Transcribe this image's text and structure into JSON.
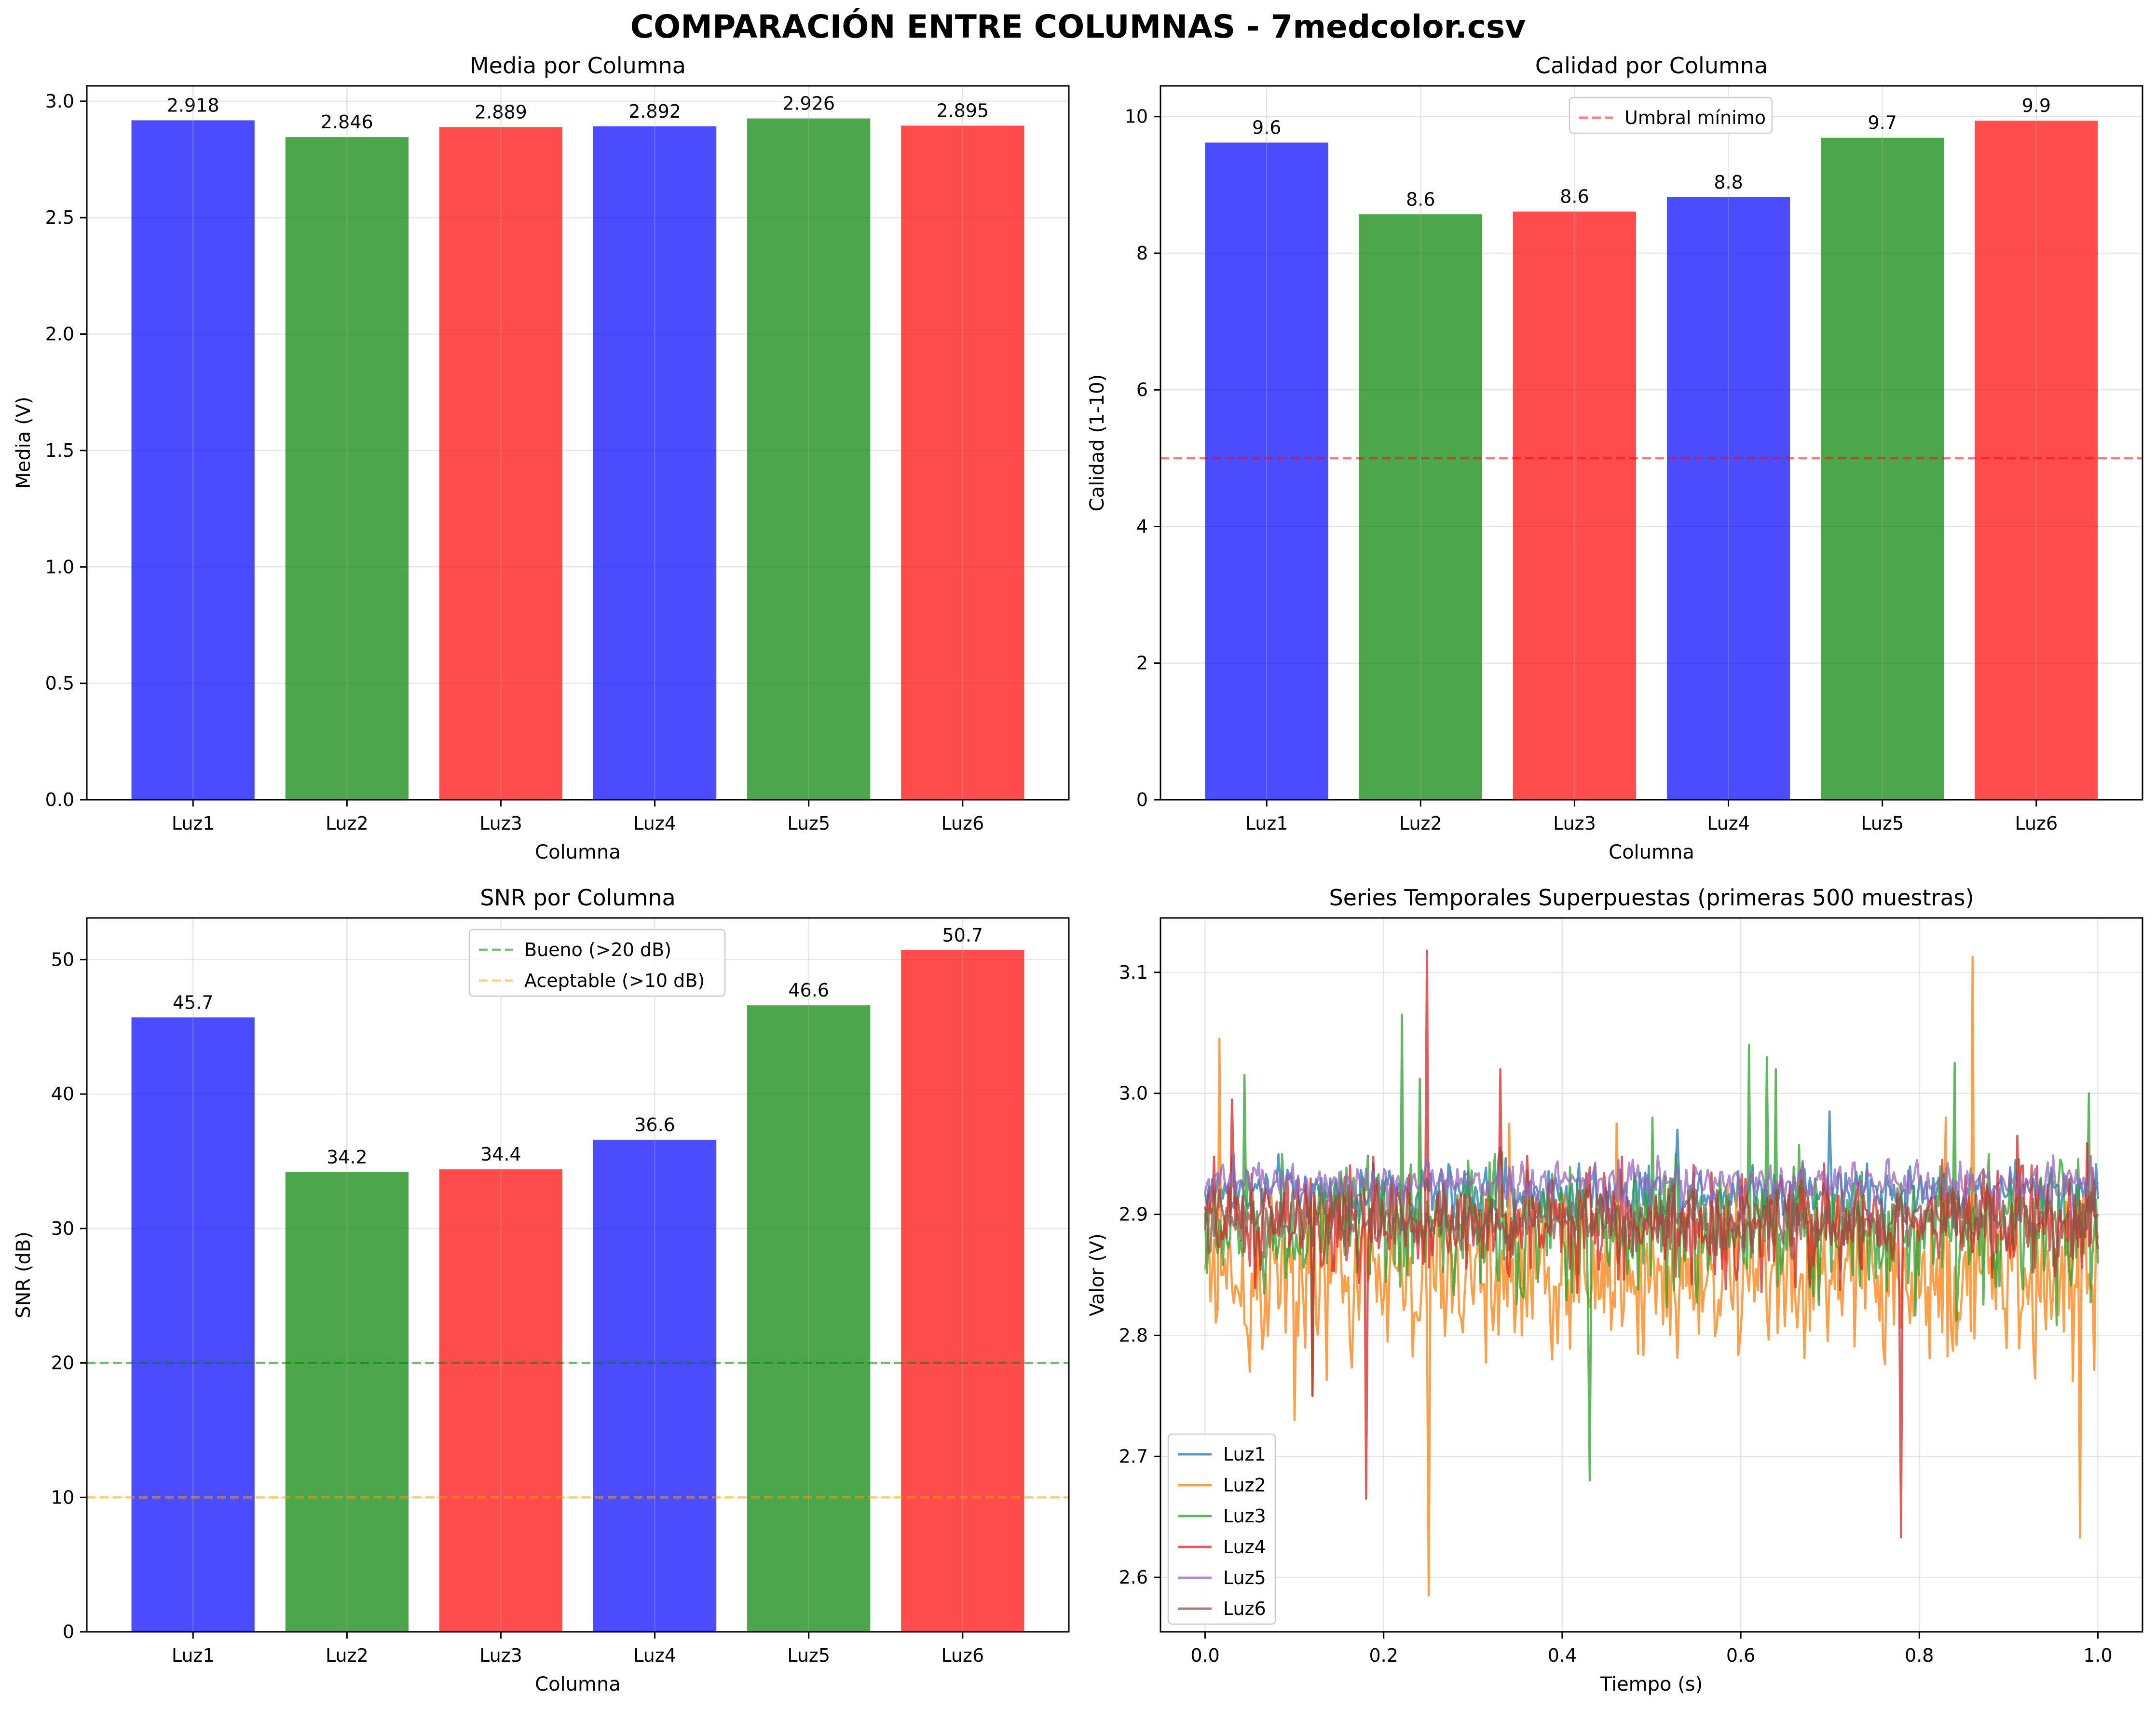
{
  "suptitle": "COMPARACIÓN ENTRE COLUMNAS - 7medcolor.csv",
  "colors": {
    "blue": "#0000ff",
    "green": "#008000",
    "red": "#ff0000",
    "line_blue": "#1f77b4",
    "line_orange": "#ff7f0e",
    "line_green": "#2ca02c",
    "line_red": "#d62728",
    "line_purple": "#9467bd",
    "line_brown": "#8c564b",
    "threshold_red": "#ff0000",
    "threshold_green": "#008000",
    "threshold_orange": "#ffa500"
  },
  "chart_data": [
    {
      "id": "media",
      "type": "bar",
      "title": "Media por Columna",
      "xlabel": "Columna",
      "ylabel": "Media (V)",
      "categories": [
        "Luz1",
        "Luz2",
        "Luz3",
        "Luz4",
        "Luz5",
        "Luz6"
      ],
      "values": [
        2.918,
        2.846,
        2.889,
        2.892,
        2.926,
        2.895
      ],
      "value_labels": [
        "2.918",
        "2.846",
        "2.889",
        "2.892",
        "2.926",
        "2.895"
      ],
      "bar_colors": [
        "blue",
        "green",
        "red",
        "blue",
        "green",
        "red"
      ],
      "ylim": [
        0,
        3.066
      ],
      "yticks": [
        0,
        0.5,
        1.0,
        1.5,
        2.0,
        2.5,
        3.0
      ],
      "ytick_labels": [
        "0.0",
        "0.5",
        "1.0",
        "1.5",
        "2.0",
        "2.5",
        "3.0"
      ],
      "grid": true,
      "hlines": [],
      "legend": null
    },
    {
      "id": "calidad",
      "type": "bar",
      "title": "Calidad por Columna",
      "xlabel": "Columna",
      "ylabel": "Calidad (1-10)",
      "categories": [
        "Luz1",
        "Luz2",
        "Luz3",
        "Luz4",
        "Luz5",
        "Luz6"
      ],
      "values": [
        9.62,
        8.57,
        8.61,
        8.82,
        9.69,
        9.94
      ],
      "value_labels": [
        "9.6",
        "8.6",
        "8.6",
        "8.8",
        "9.7",
        "9.9"
      ],
      "bar_colors": [
        "blue",
        "green",
        "red",
        "blue",
        "green",
        "red"
      ],
      "ylim": [
        0,
        10.45
      ],
      "yticks": [
        0,
        2,
        4,
        6,
        8,
        10
      ],
      "ytick_labels": [
        "0",
        "2",
        "4",
        "6",
        "8",
        "10"
      ],
      "grid": true,
      "hlines": [
        {
          "y": 5,
          "color": "threshold_red",
          "label": "Umbral mínimo"
        }
      ],
      "legend": "upper-center"
    },
    {
      "id": "snr",
      "type": "bar",
      "title": "SNR por Columna",
      "xlabel": "Columna",
      "ylabel": "SNR (dB)",
      "categories": [
        "Luz1",
        "Luz2",
        "Luz3",
        "Luz4",
        "Luz5",
        "Luz6"
      ],
      "values": [
        45.7,
        34.2,
        34.4,
        36.6,
        46.6,
        50.7
      ],
      "value_labels": [
        "45.7",
        "34.2",
        "34.4",
        "36.6",
        "46.6",
        "50.7"
      ],
      "bar_colors": [
        "blue",
        "green",
        "red",
        "blue",
        "green",
        "red"
      ],
      "ylim": [
        0,
        53.1
      ],
      "yticks": [
        0,
        10,
        20,
        30,
        40,
        50
      ],
      "ytick_labels": [
        "0",
        "10",
        "20",
        "30",
        "40",
        "50"
      ],
      "grid": true,
      "hlines": [
        {
          "y": 20,
          "color": "threshold_green",
          "label": "Bueno (>20 dB)"
        },
        {
          "y": 10,
          "color": "threshold_orange",
          "label": "Aceptable (>10 dB)"
        }
      ],
      "legend": "upper-center"
    },
    {
      "id": "series",
      "type": "line",
      "title": "Series Temporales Superpuestas (primeras 500 muestras)",
      "xlabel": "Tiempo (s)",
      "ylabel": "Valor (V)",
      "xlim": [
        -0.05,
        1.05
      ],
      "ylim": [
        2.555,
        3.145
      ],
      "xticks": [
        0.0,
        0.2,
        0.4,
        0.6,
        0.8,
        1.0
      ],
      "xtick_labels": [
        "0.0",
        "0.2",
        "0.4",
        "0.6",
        "0.8",
        "1.0"
      ],
      "yticks": [
        2.6,
        2.7,
        2.8,
        2.9,
        3.0,
        3.1
      ],
      "ytick_labels": [
        "2.6",
        "2.7",
        "2.8",
        "2.9",
        "3.0",
        "3.1"
      ],
      "grid": true,
      "legend": "lower-left",
      "series": [
        {
          "name": "Luz1",
          "color": "line_blue",
          "mean": 2.918,
          "noise": 0.012,
          "spikes": [
            [
              0.7,
              2.985
            ],
            [
              0.53,
              2.97
            ],
            [
              0.33,
              2.955
            ]
          ]
        },
        {
          "name": "Luz2",
          "color": "line_orange",
          "mean": 2.846,
          "noise": 0.034,
          "spikes": [
            [
              0.016,
              3.045
            ],
            [
              0.25,
              2.585
            ],
            [
              0.86,
              3.113
            ],
            [
              0.1,
              2.73
            ],
            [
              0.83,
              2.98
            ],
            [
              0.98,
              2.633
            ],
            [
              0.34,
              2.975
            ],
            [
              0.46,
              2.975
            ],
            [
              0.05,
              2.77
            ]
          ]
        },
        {
          "name": "Luz3",
          "color": "line_green",
          "mean": 2.889,
          "noise": 0.028,
          "spikes": [
            [
              0.22,
              3.065
            ],
            [
              0.43,
              2.68
            ],
            [
              0.61,
              3.04
            ],
            [
              0.84,
              3.025
            ],
            [
              0.044,
              3.015
            ],
            [
              0.24,
              3.012
            ],
            [
              0.63,
              3.03
            ],
            [
              0.12,
              2.75
            ],
            [
              0.64,
              3.02
            ],
            [
              0.5,
              2.98
            ],
            [
              0.99,
              3.0
            ]
          ]
        },
        {
          "name": "Luz4",
          "color": "line_red",
          "mean": 2.892,
          "noise": 0.022,
          "spikes": [
            [
              0.249,
              3.118
            ],
            [
              0.78,
              2.633
            ],
            [
              0.18,
              2.665
            ],
            [
              0.33,
              3.02
            ],
            [
              0.91,
              2.965
            ],
            [
              0.03,
              2.995
            ],
            [
              0.12,
              2.75
            ]
          ]
        },
        {
          "name": "Luz5",
          "color": "line_purple",
          "mean": 2.926,
          "noise": 0.009,
          "spikes": []
        },
        {
          "name": "Luz6",
          "color": "line_brown",
          "mean": 2.895,
          "noise": 0.012,
          "spikes": []
        }
      ]
    }
  ]
}
